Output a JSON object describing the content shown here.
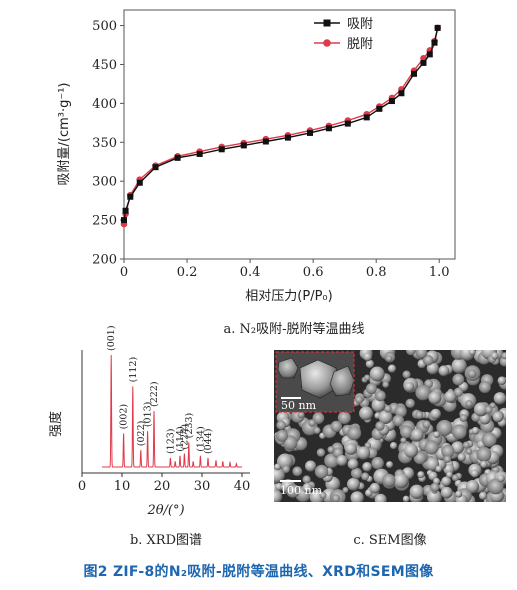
{
  "figure": {
    "caption": "图2 ZIF-8的N₂吸附-脱附等温曲线、XRD和SEM图像"
  },
  "panel_a": {
    "subcaption": "a. N₂吸附-脱附等温曲线",
    "xlabel": "相对压力(P/P₀)",
    "ylabel": "吸附量/(cm³·g⁻¹)",
    "x_ticks": [
      "0",
      "0.2",
      "0.4",
      "0.6",
      "0.8",
      "1.0"
    ],
    "y_ticks": [
      "200",
      "250",
      "300",
      "350",
      "400",
      "450",
      "500"
    ],
    "legend": [
      "吸附",
      "脱附"
    ],
    "colors": {
      "adsorption": "#111111",
      "desorption": "#e03a4a"
    }
  },
  "panel_b": {
    "subcaption": "b. XRD图谱",
    "xlabel": "2θ/(°)",
    "ylabel": "强度",
    "x_ticks": [
      "0",
      "10",
      "20",
      "30",
      "40"
    ],
    "peak_labels": [
      "(001)",
      "(002)",
      "(112)",
      "(022)",
      "(013)",
      "(222)",
      "(123)",
      "(114)",
      "(233)",
      "(224)",
      "(134)",
      "(044)"
    ],
    "color": "#e03a4a"
  },
  "panel_c": {
    "subcaption": "c. SEM图像",
    "inset_scale": "50 nm",
    "main_scale": "100 nm"
  },
  "chart_data": [
    {
      "type": "line",
      "xlabel": "相对压力(P/P₀)",
      "ylabel": "吸附量/(cm³·g⁻¹)",
      "xlim": [
        0,
        1.05
      ],
      "ylim": [
        200,
        520
      ],
      "legend_position": "top-right",
      "series": [
        {
          "name": "吸附",
          "x": [
            0.0,
            0.005,
            0.02,
            0.05,
            0.1,
            0.17,
            0.24,
            0.31,
            0.38,
            0.45,
            0.52,
            0.59,
            0.65,
            0.71,
            0.77,
            0.81,
            0.85,
            0.88,
            0.92,
            0.95,
            0.97,
            0.985,
            0.995
          ],
          "y": [
            250,
            262,
            280,
            298,
            318,
            330,
            335,
            341,
            346,
            351,
            356,
            362,
            368,
            374,
            382,
            393,
            403,
            413,
            438,
            452,
            463,
            478,
            497
          ]
        },
        {
          "name": "脱附",
          "x": [
            0.0,
            0.005,
            0.02,
            0.05,
            0.1,
            0.17,
            0.24,
            0.31,
            0.38,
            0.45,
            0.52,
            0.59,
            0.65,
            0.71,
            0.77,
            0.81,
            0.85,
            0.88,
            0.92,
            0.95,
            0.97,
            0.985,
            0.995
          ],
          "y": [
            245,
            258,
            282,
            302,
            320,
            332,
            338,
            344,
            349,
            354,
            359,
            365,
            371,
            378,
            386,
            396,
            407,
            418,
            442,
            458,
            468,
            480,
            497
          ]
        }
      ]
    },
    {
      "type": "line",
      "xlabel": "2θ/(°)",
      "ylabel": "强度",
      "xlim": [
        0,
        42
      ],
      "peaks": [
        {
          "x": 7.3,
          "height": 1.0,
          "label": "(001)"
        },
        {
          "x": 10.4,
          "height": 0.3,
          "label": "(002)"
        },
        {
          "x": 12.7,
          "height": 0.72,
          "label": "(112)"
        },
        {
          "x": 14.7,
          "height": 0.15,
          "label": "(022)"
        },
        {
          "x": 16.4,
          "height": 0.32,
          "label": "(013)"
        },
        {
          "x": 18.0,
          "height": 0.5,
          "label": "(222)"
        },
        {
          "x": 22.1,
          "height": 0.08,
          "label": "(123)"
        },
        {
          "x": 24.5,
          "height": 0.1,
          "label": "(114)"
        },
        {
          "x": 26.7,
          "height": 0.22,
          "label": "(233)"
        },
        {
          "x": 25.6,
          "height": 0.12,
          "label": "(224)"
        },
        {
          "x": 29.6,
          "height": 0.1,
          "label": "(134)"
        },
        {
          "x": 31.5,
          "height": 0.08,
          "label": "(044)"
        }
      ]
    }
  ]
}
